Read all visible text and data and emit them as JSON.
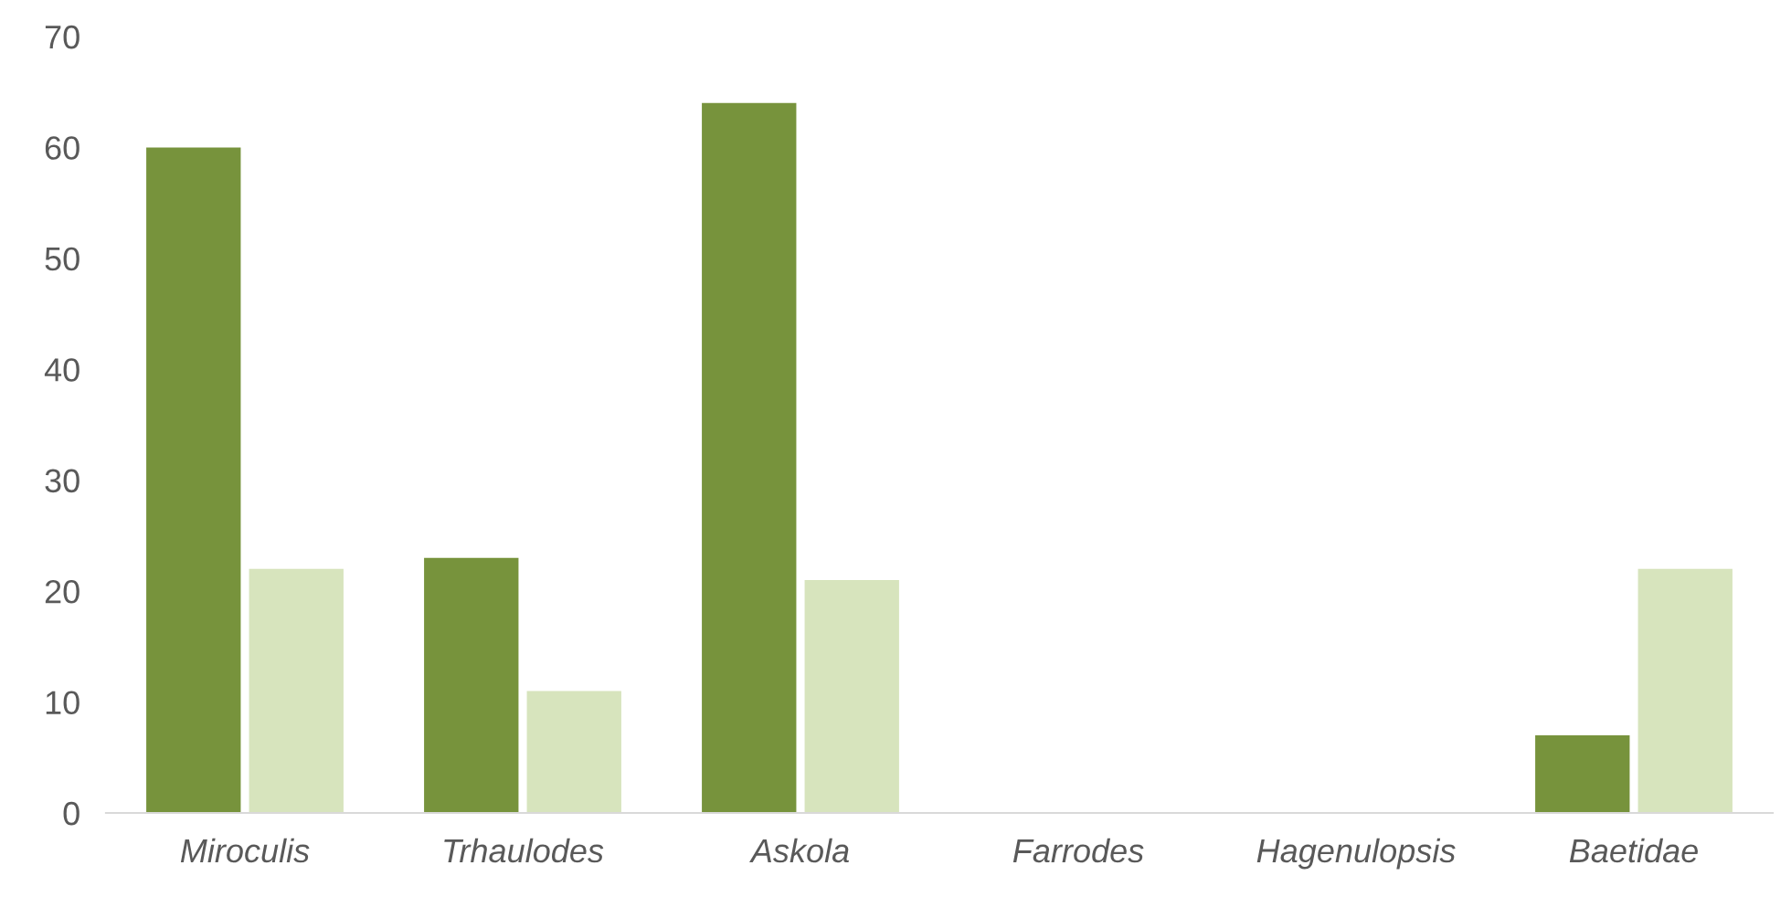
{
  "chart_data": {
    "type": "bar",
    "categories": [
      "Miroculis",
      "Trhaulodes",
      "Askola",
      "Farrodes",
      "Hagenulopsis",
      "Baetidae"
    ],
    "series": [
      {
        "color": "#77933c",
        "values": [
          60,
          23,
          64,
          0,
          0,
          7
        ]
      },
      {
        "color": "#d7e4bd",
        "values": [
          22,
          11,
          21,
          0,
          0,
          22
        ]
      }
    ],
    "ylim": [
      0,
      70
    ],
    "yticks": [
      0,
      10,
      20,
      30,
      40,
      50,
      60,
      70
    ],
    "grid": false
  }
}
